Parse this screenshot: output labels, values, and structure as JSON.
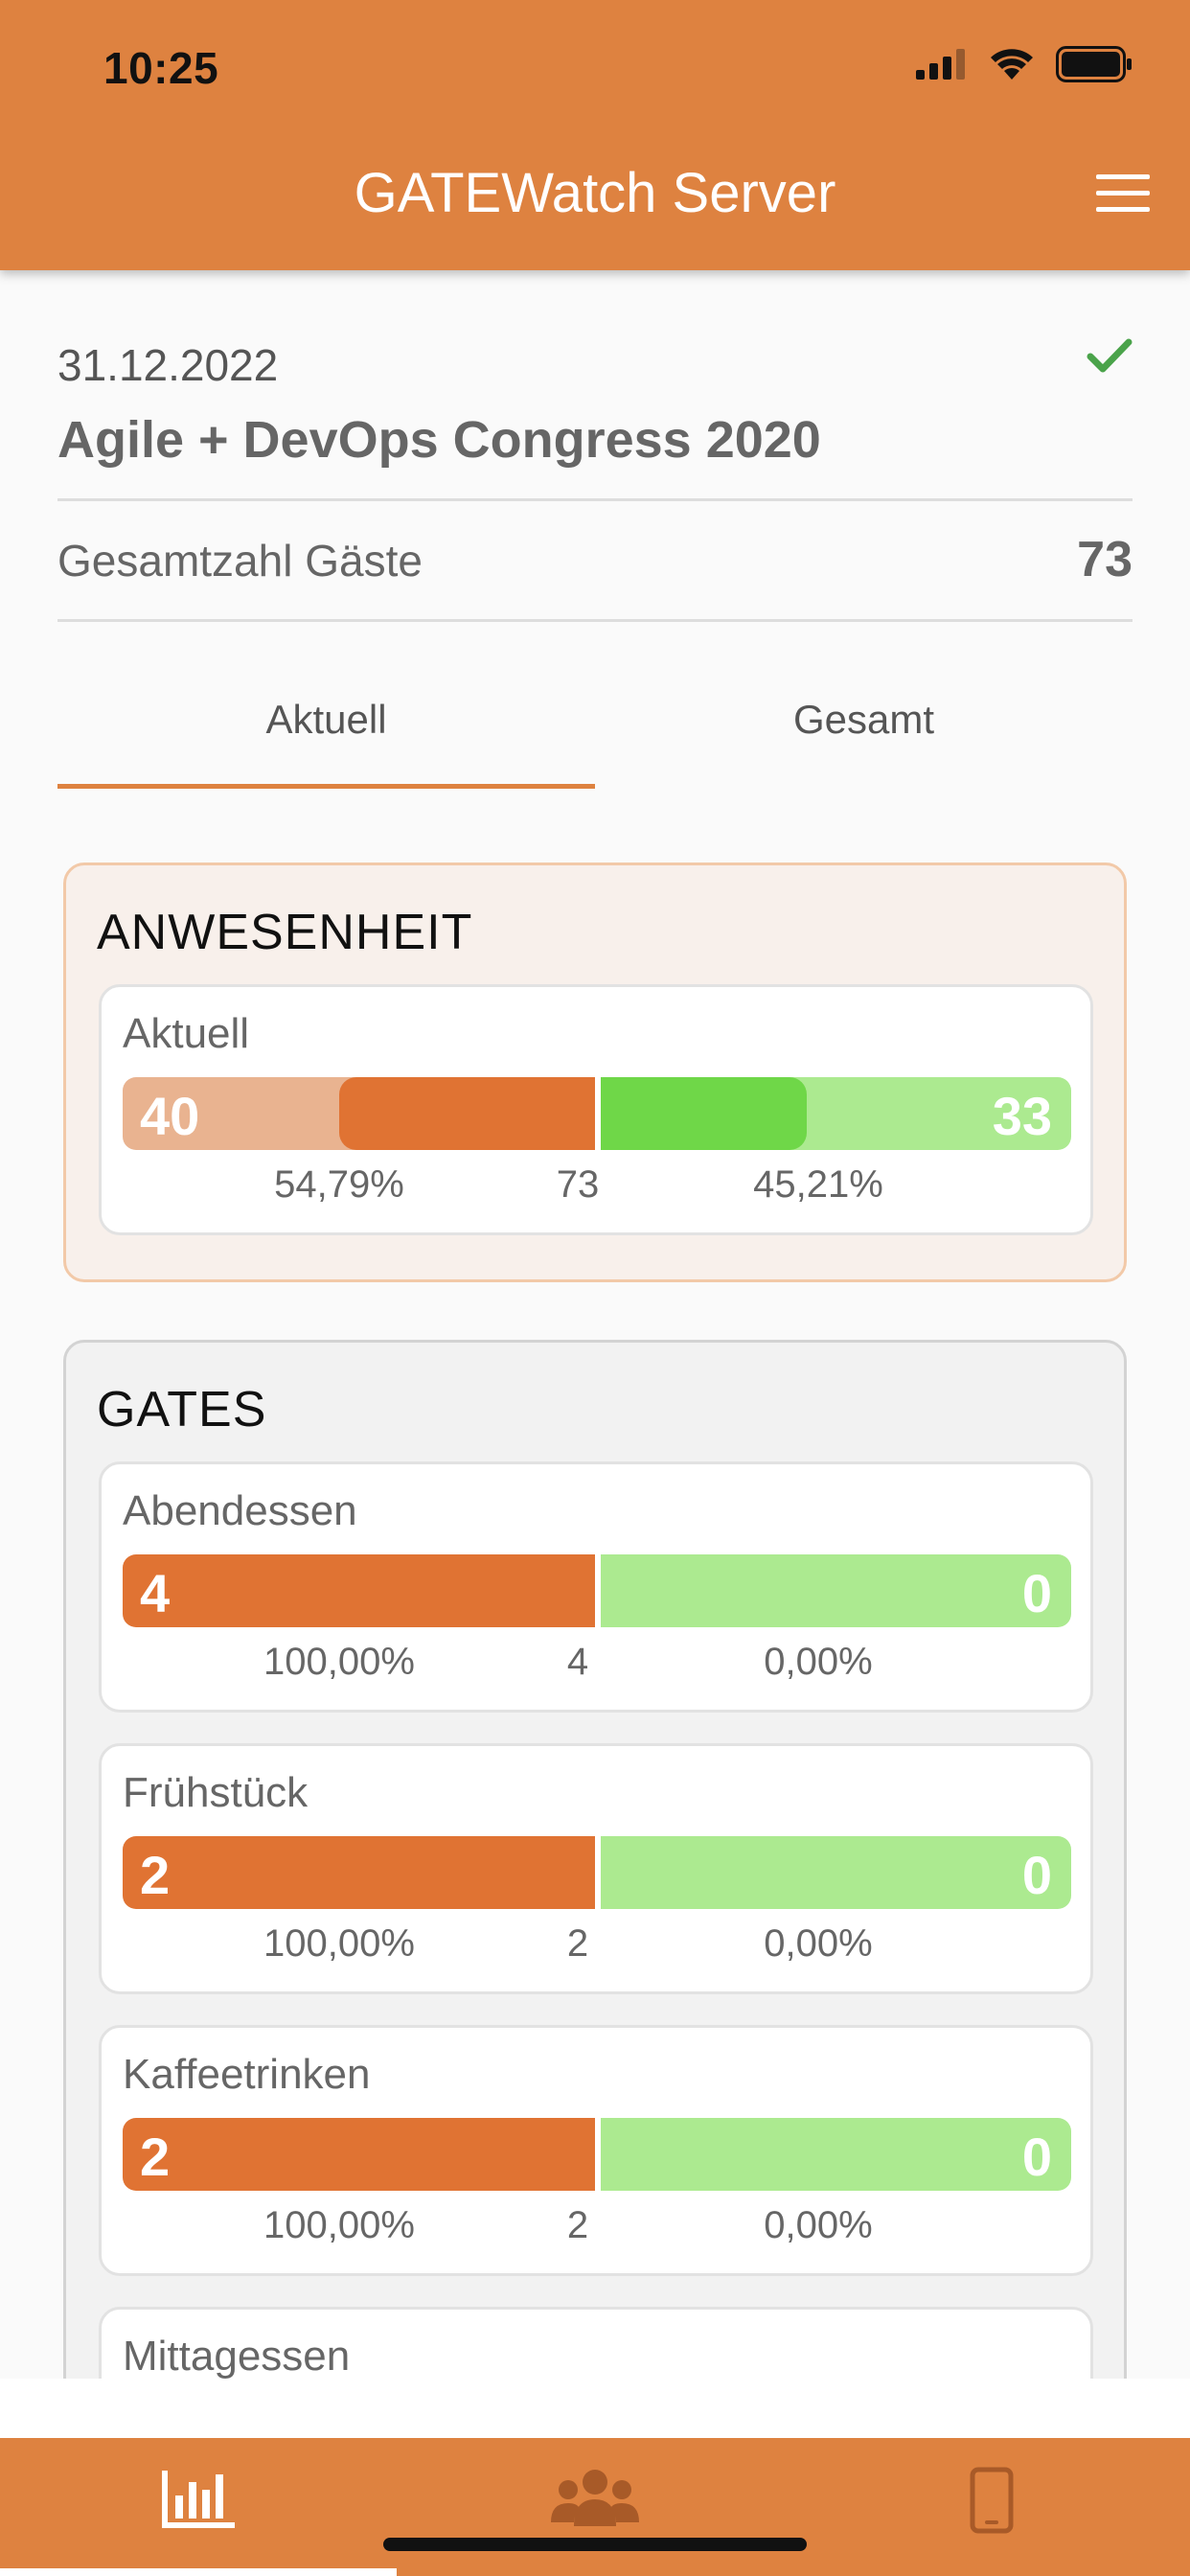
{
  "status_bar": {
    "time": "10:25"
  },
  "header": {
    "title": "GATEWatch Server"
  },
  "event": {
    "date": "31.12.2022",
    "name": "Agile + DevOps Congress 2020",
    "total_guests_label": "Gesamtzahl Gäste",
    "total_guests_value": "73"
  },
  "tabs": [
    {
      "label": "Aktuell",
      "active": true
    },
    {
      "label": "Gesamt",
      "active": false
    }
  ],
  "attendance": {
    "title": "ANWESENHEIT",
    "card": {
      "label": "Aktuell",
      "left_value": "40",
      "right_value": "33",
      "left_percent": "54,79%",
      "total": "73",
      "right_percent": "45,21%"
    }
  },
  "gates": {
    "title": "GATES",
    "items": [
      {
        "label": "Abendessen",
        "left_value": "4",
        "right_value": "0",
        "left_percent": "100,00%",
        "total": "4",
        "right_percent": "0,00%"
      },
      {
        "label": "Frühstück",
        "left_value": "2",
        "right_value": "0",
        "left_percent": "100,00%",
        "total": "2",
        "right_percent": "0,00%"
      },
      {
        "label": "Kaffeetrinken",
        "left_value": "2",
        "right_value": "0",
        "left_percent": "100,00%",
        "total": "2",
        "right_percent": "0,00%"
      },
      {
        "label": "Mittagessen"
      }
    ]
  },
  "bottom_nav": {
    "items": [
      {
        "icon": "bar-chart-icon",
        "active": true
      },
      {
        "icon": "users-group-icon",
        "active": false
      },
      {
        "icon": "mobile-device-icon",
        "active": false
      }
    ]
  },
  "colors": {
    "accent": "#de8240",
    "bar_orange": "#e07333",
    "bar_orange_light": "#e9b390",
    "bar_green": "#6fd748",
    "bar_green_light": "#acea90",
    "check_green": "#4aa34a"
  }
}
